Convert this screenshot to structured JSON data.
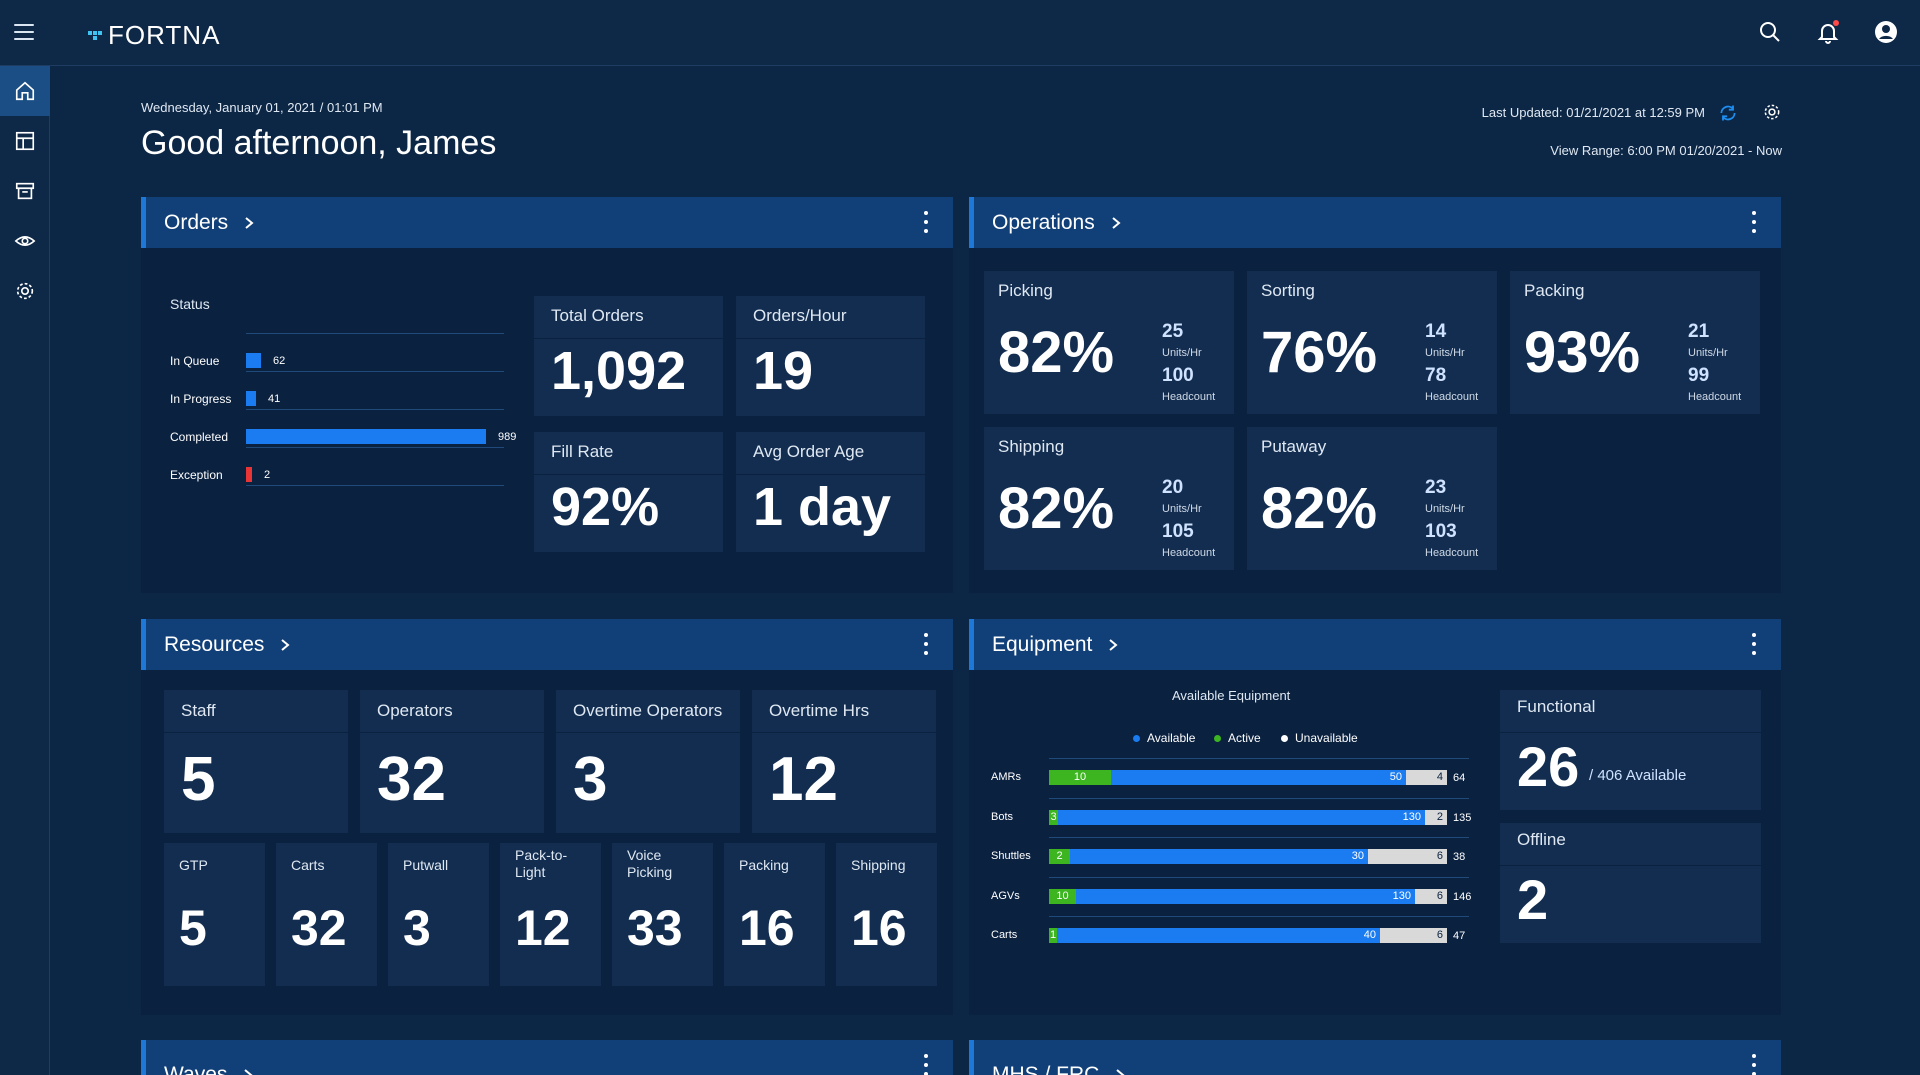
{
  "app": {
    "logo": "FORTNA"
  },
  "header": {
    "datestamp": "Wednesday, January 01, 2021  /  01:01 PM",
    "greeting": "Good afternoon, James",
    "last_updated": "Last Updated: 01/21/2021 at 12:59 PM",
    "view_range": "View Range: 6:00 PM 01/20/2021 - Now"
  },
  "colors": {
    "accent": "#1e78d8",
    "bar_blue": "#1a7cf0",
    "exception_red": "#e93535",
    "active_green": "#3cb521",
    "unavailable_white": "#d9d9d9",
    "refresh_blue": "#1e8ef0"
  },
  "nav": [
    "home-icon",
    "dashboard-icon",
    "archive-icon",
    "eye-icon",
    "gear-icon"
  ],
  "orders": {
    "title": "Orders",
    "status_label": "Status",
    "status": [
      {
        "label": "In Queue",
        "value": 62
      },
      {
        "label": "In Progress",
        "value": 41
      },
      {
        "label": "Completed",
        "value": 989
      },
      {
        "label": "Exception",
        "value": 2
      }
    ],
    "kpis": {
      "total_orders_label": "Total Orders",
      "total_orders": "1,092",
      "orders_hour_label": "Orders/Hour",
      "orders_hour": "19",
      "fill_rate_label": "Fill Rate",
      "fill_rate": "92%",
      "avg_age_label": "Avg Order Age",
      "avg_age": "1 day"
    }
  },
  "operations": {
    "title": "Operations",
    "units_label": "Units/Hr",
    "headcount_label": "Headcount",
    "cards": [
      {
        "name": "Picking",
        "pct": "82%",
        "units": "25",
        "headcount": "100"
      },
      {
        "name": "Sorting",
        "pct": "76%",
        "units": "14",
        "headcount": "78"
      },
      {
        "name": "Packing",
        "pct": "93%",
        "units": "21",
        "headcount": "99"
      },
      {
        "name": "Shipping",
        "pct": "82%",
        "units": "20",
        "headcount": "105"
      },
      {
        "name": "Putaway",
        "pct": "82%",
        "units": "23",
        "headcount": "103"
      }
    ]
  },
  "resources": {
    "title": "Resources",
    "top": [
      {
        "label": "Staff",
        "value": "5"
      },
      {
        "label": "Operators",
        "value": "32"
      },
      {
        "label": "Overtime Operators",
        "value": "3"
      },
      {
        "label": "Overtime Hrs",
        "value": "12"
      }
    ],
    "bottom": [
      {
        "label": "GTP",
        "value": "5"
      },
      {
        "label": "Carts",
        "value": "32"
      },
      {
        "label": "Putwall",
        "value": "3"
      },
      {
        "label": "Pack-to-Light",
        "value": "12"
      },
      {
        "label": "Voice Picking",
        "value": "33"
      },
      {
        "label": "Packing",
        "value": "16"
      },
      {
        "label": "Shipping",
        "value": "16"
      }
    ]
  },
  "equipment": {
    "title": "Equipment",
    "chart_title": "Available Equipment",
    "legend": [
      "Available",
      "Active",
      "Unavailable"
    ],
    "functional_label": "Functional",
    "functional_value": "26",
    "functional_sub": "/ 406 Available",
    "offline_label": "Offline",
    "offline_value": "2"
  },
  "chart_data": [
    {
      "type": "bar",
      "title": "Status",
      "categories": [
        "In Queue",
        "In Progress",
        "Completed",
        "Exception"
      ],
      "values": [
        62,
        41,
        989,
        2
      ]
    },
    {
      "type": "bar",
      "title": "Available Equipment",
      "categories": [
        "AMRs",
        "Bots",
        "Shuttles",
        "AGVs",
        "Carts"
      ],
      "series": [
        {
          "name": "Active",
          "values": [
            10,
            3,
            2,
            10,
            1
          ]
        },
        {
          "name": "Available",
          "values": [
            50,
            130,
            30,
            130,
            40
          ]
        },
        {
          "name": "Unavailable",
          "values": [
            4,
            2,
            6,
            6,
            6
          ]
        }
      ],
      "totals": [
        64,
        135,
        38,
        146,
        47
      ]
    }
  ],
  "bottom_panels": {
    "waves": "Waves",
    "mhs": "MHS / FRC"
  }
}
